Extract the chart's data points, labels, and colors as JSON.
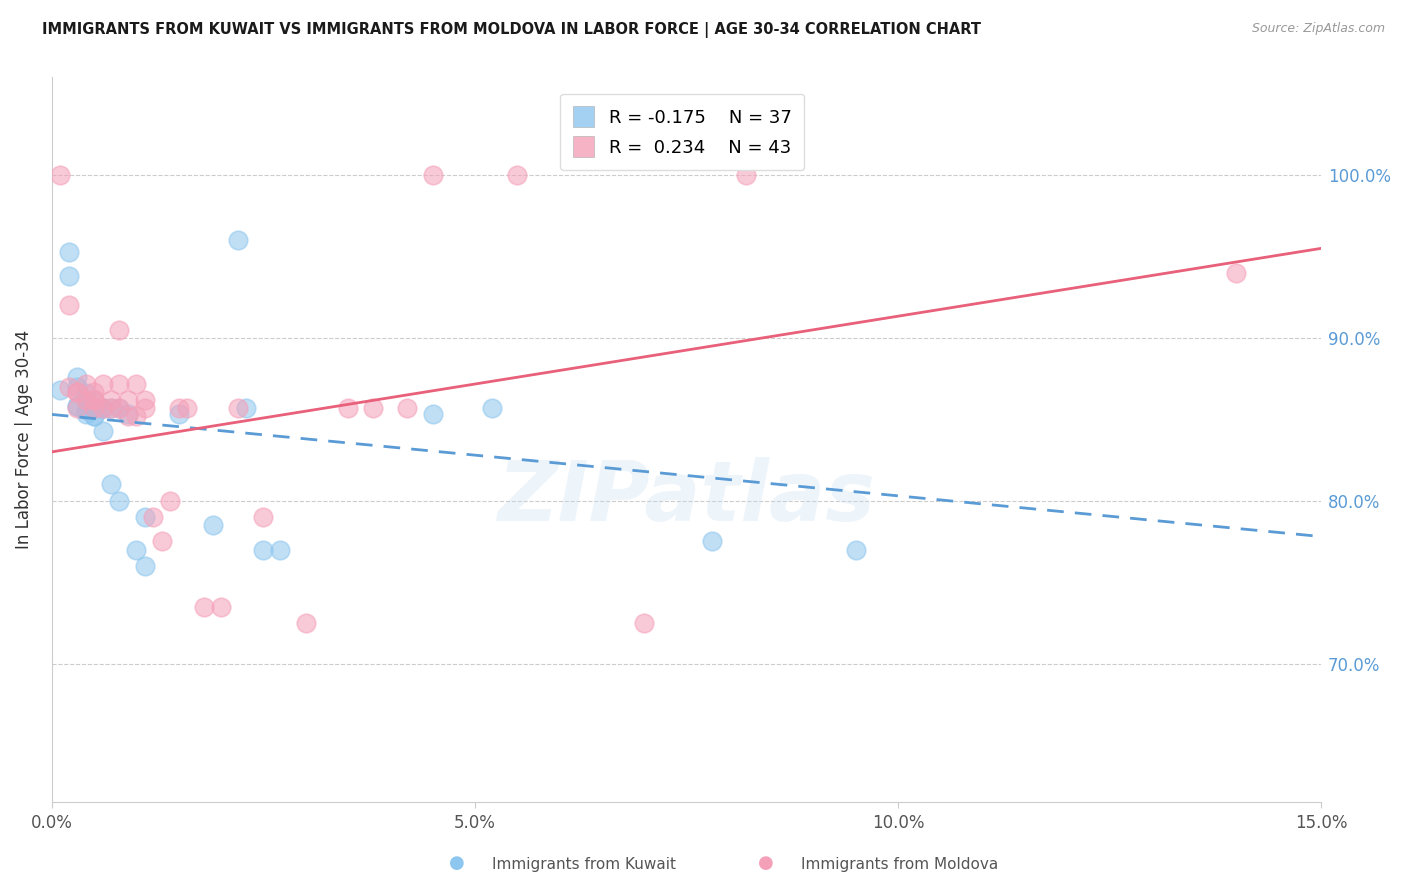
{
  "title": "IMMIGRANTS FROM KUWAIT VS IMMIGRANTS FROM MOLDOVA IN LABOR FORCE | AGE 30-34 CORRELATION CHART",
  "source": "Source: ZipAtlas.com",
  "ylabel": "In Labor Force | Age 30-34",
  "xlim": [
    0.0,
    0.15
  ],
  "ylim": [
    0.615,
    1.06
  ],
  "yticks": [
    0.7,
    0.8,
    0.9,
    1.0
  ],
  "ytick_labels": [
    "70.0%",
    "80.0%",
    "90.0%",
    "100.0%"
  ],
  "xticks": [
    0.0,
    0.05,
    0.1,
    0.15
  ],
  "xtick_labels": [
    "0.0%",
    "5.0%",
    "10.0%",
    "15.0%"
  ],
  "kuwait_color": "#8DC6EE",
  "moldova_color": "#F4A0B8",
  "kuwait_trend_color": "#5B9BD5",
  "moldova_trend_color": "#E8607A",
  "legend_R_kuwait": "R = -0.175",
  "legend_N_kuwait": "N = 37",
  "legend_R_moldova": "R =  0.234",
  "legend_N_moldova": "N = 43",
  "watermark": "ZIPatlas",
  "kuwait_x": [
    0.001,
    0.002,
    0.002,
    0.003,
    0.003,
    0.003,
    0.003,
    0.004,
    0.004,
    0.004,
    0.004,
    0.005,
    0.005,
    0.005,
    0.005,
    0.005,
    0.006,
    0.006,
    0.006,
    0.007,
    0.007,
    0.008,
    0.008,
    0.009,
    0.01,
    0.011,
    0.011,
    0.015,
    0.019,
    0.022,
    0.023,
    0.025,
    0.027,
    0.045,
    0.052,
    0.078,
    0.095
  ],
  "kuwait_y": [
    0.868,
    0.953,
    0.938,
    0.858,
    0.87,
    0.876,
    0.858,
    0.862,
    0.856,
    0.866,
    0.853,
    0.857,
    0.852,
    0.857,
    0.852,
    0.862,
    0.857,
    0.843,
    0.857,
    0.857,
    0.81,
    0.857,
    0.8,
    0.853,
    0.77,
    0.79,
    0.76,
    0.853,
    0.785,
    0.96,
    0.857,
    0.77,
    0.77,
    0.853,
    0.857,
    0.775,
    0.77
  ],
  "moldova_x": [
    0.001,
    0.002,
    0.002,
    0.003,
    0.003,
    0.003,
    0.004,
    0.004,
    0.005,
    0.005,
    0.005,
    0.005,
    0.006,
    0.006,
    0.007,
    0.007,
    0.008,
    0.008,
    0.008,
    0.009,
    0.009,
    0.01,
    0.01,
    0.011,
    0.011,
    0.012,
    0.013,
    0.014,
    0.015,
    0.016,
    0.018,
    0.02,
    0.022,
    0.025,
    0.03,
    0.035,
    0.038,
    0.042,
    0.045,
    0.055,
    0.07,
    0.082,
    0.14
  ],
  "moldova_y": [
    1.0,
    0.87,
    0.92,
    0.867,
    0.857,
    0.867,
    0.862,
    0.872,
    0.867,
    0.862,
    0.857,
    0.862,
    0.857,
    0.872,
    0.862,
    0.857,
    0.905,
    0.857,
    0.872,
    0.862,
    0.852,
    0.872,
    0.852,
    0.862,
    0.857,
    0.79,
    0.775,
    0.8,
    0.857,
    0.857,
    0.735,
    0.735,
    0.857,
    0.79,
    0.725,
    0.857,
    0.857,
    0.857,
    1.0,
    1.0,
    0.725,
    1.0,
    0.94
  ],
  "kuwait_trend_x0": 0.0,
  "kuwait_trend_y0": 0.853,
  "kuwait_trend_x1": 0.15,
  "kuwait_trend_y1": 0.778,
  "moldova_trend_x0": 0.0,
  "moldova_trend_y0": 0.83,
  "moldova_trend_x1": 0.15,
  "moldova_trend_y1": 0.955
}
